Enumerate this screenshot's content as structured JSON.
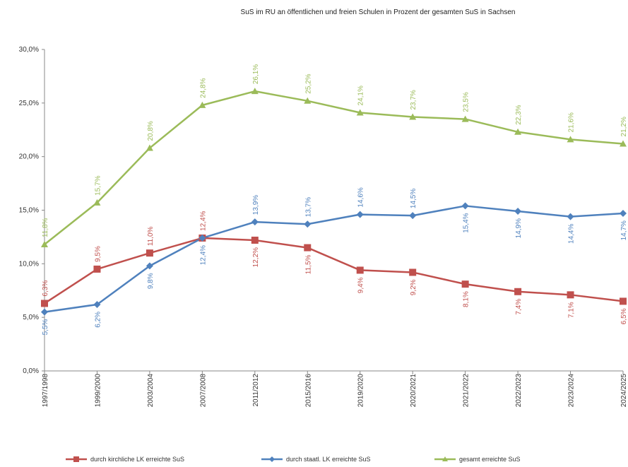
{
  "chart_data": {
    "type": "line",
    "title": "SuS im RU an öffentlichen und freien Schulen in Prozent der gesamten SuS in Sachsen",
    "xlabel": "",
    "ylabel": "",
    "categories": [
      "1997/1998",
      "1999/2000",
      "2003/2004",
      "2007/2008",
      "2011/2012",
      "2015/2016",
      "2019/2020",
      "2020/2021",
      "2021/2022",
      "2022/2023",
      "2023/2024",
      "2024/2025"
    ],
    "ylim": [
      0,
      30
    ],
    "yticks": [
      "0,0%",
      "5,0%",
      "10,0%",
      "15,0%",
      "20,0%",
      "25,0%",
      "30,0%"
    ],
    "grid": false,
    "legend_position": "bottom",
    "series": [
      {
        "name": "durch kirchliche LK erreichte SuS",
        "color": "#c0504d",
        "marker": "square",
        "values": [
          6.3,
          9.5,
          11.0,
          12.4,
          12.2,
          11.5,
          9.4,
          9.2,
          8.1,
          7.4,
          7.1,
          6.5
        ],
        "labels": [
          "6,3%",
          "9,5%",
          "11,0%",
          "12,4%",
          "12,2%",
          "11,5%",
          "9,4%",
          "9,2%",
          "8,1%",
          "7,4%",
          "7,1%",
          "6,5%"
        ]
      },
      {
        "name": "durch staatl. LK erreichte SuS",
        "color": "#4f81bd",
        "marker": "diamond",
        "values": [
          5.5,
          6.2,
          9.8,
          12.4,
          13.9,
          13.7,
          14.6,
          14.5,
          15.4,
          14.9,
          14.4,
          14.7
        ],
        "labels": [
          "5,5%",
          "6,2%",
          "9,8%",
          "12,4%",
          "13,9%",
          "13,7%",
          "14,6%",
          "14,5%",
          "15,4%",
          "14,9%",
          "14,4%",
          "14,7%"
        ]
      },
      {
        "name": "gesamt erreichte SuS",
        "color": "#9bbb59",
        "marker": "triangle",
        "values": [
          11.8,
          15.7,
          20.8,
          24.8,
          26.1,
          25.2,
          24.1,
          23.7,
          23.5,
          22.3,
          21.6,
          21.2
        ],
        "labels": [
          "11,8%",
          "15,7%",
          "20,8%",
          "24,8%",
          "26,1%",
          "25,2%",
          "24,1%",
          "23,7%",
          "23,5%",
          "22,3%",
          "21,6%",
          "21,2%"
        ]
      }
    ]
  }
}
